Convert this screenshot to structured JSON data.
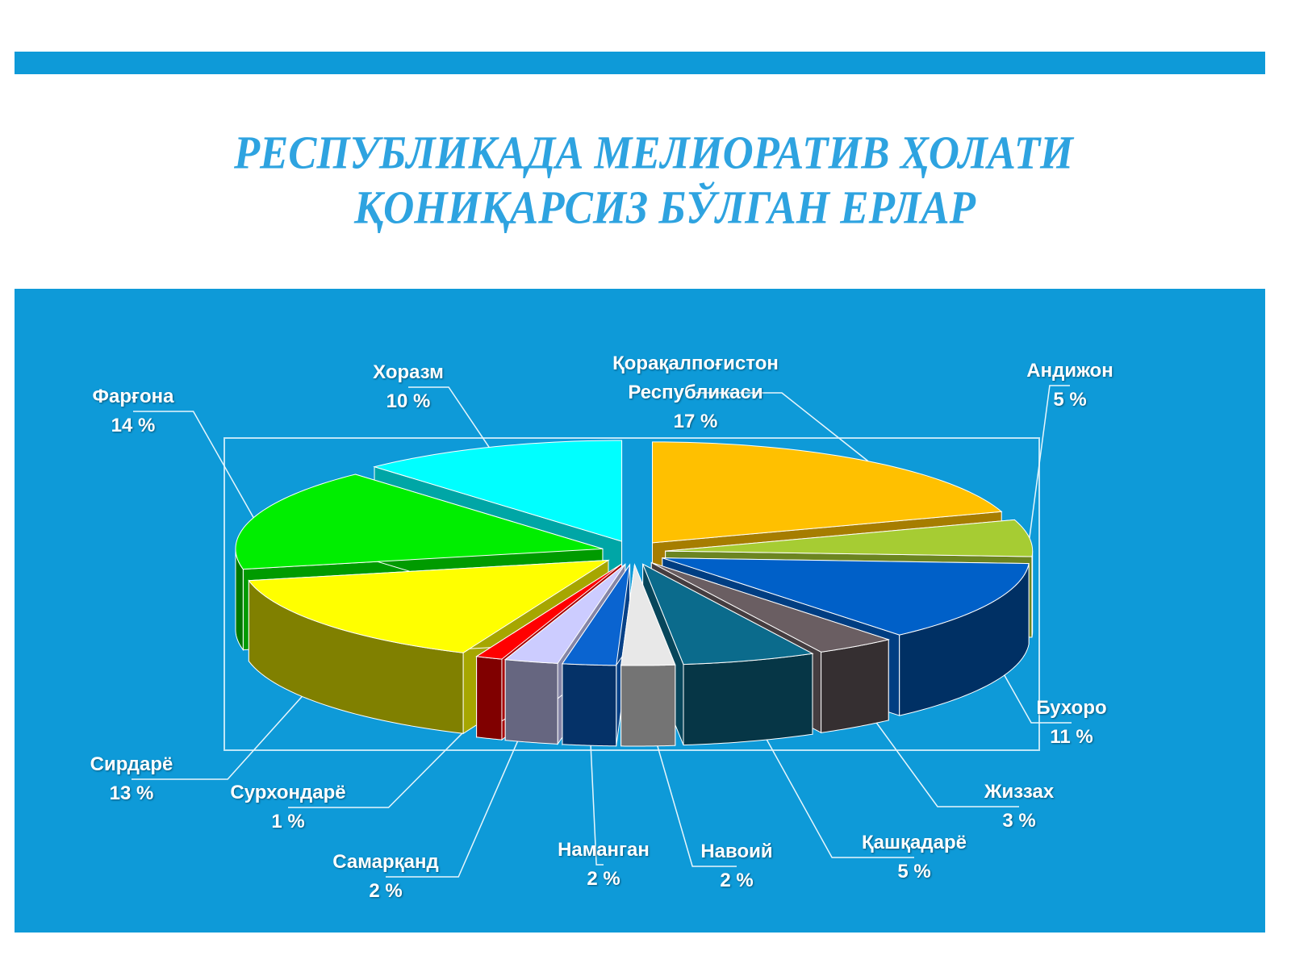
{
  "chart_data": {
    "type": "pie",
    "title": [
      "РЕСПУБЛИКАДА МЕЛИОРАТИВ ҲОЛАТИ",
      "ҚОНИҚАРСИЗ БЎЛГАН ЕРЛАР"
    ],
    "categories": [
      "Қорақалпоғистон Республикаси",
      "Андижон",
      "Бухоро",
      "Жиззах",
      "Қашқадарё",
      "Навоий",
      "Наманган",
      "Самарқанд",
      "Сурхондарё",
      "Сирдарё",
      "Фарғона",
      "Хоразм"
    ],
    "values": [
      17,
      5,
      11,
      3,
      5,
      2,
      2,
      2,
      1,
      13,
      14,
      10
    ],
    "value_labels": [
      "17 %",
      "5 %",
      "11 %",
      "3 %",
      "5 %",
      "2 %",
      "2 %",
      "2 %",
      "1 %",
      "13 %",
      "14 %",
      "10 %"
    ],
    "colors": [
      "#ffc000",
      "#a6cc33",
      "#0060c8",
      "#6a5e62",
      "#0b6b8c",
      "#e8e8e8",
      "#0a64d0",
      "#ccccff",
      "#ff0000",
      "#ffff00",
      "#00ee00",
      "#00ffff"
    ]
  }
}
